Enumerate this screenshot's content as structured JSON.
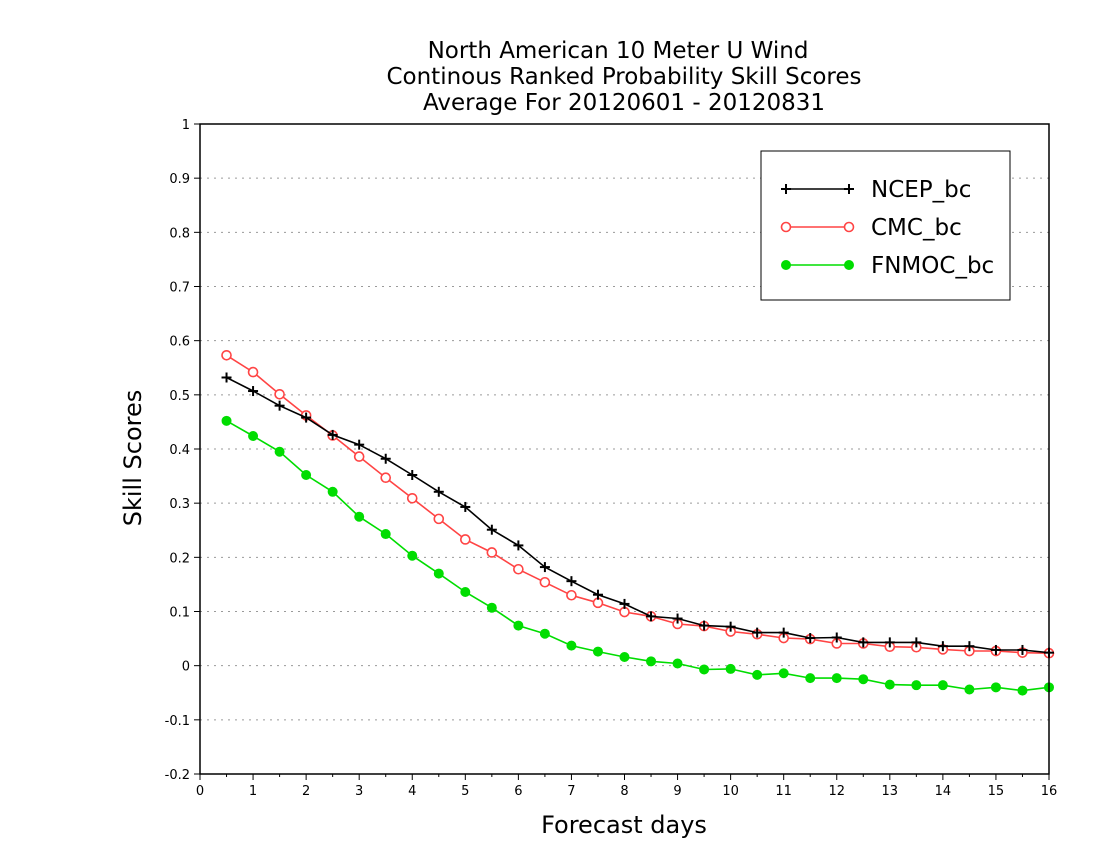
{
  "chart_data": {
    "type": "line",
    "title_lines": [
      "North American 10 Meter U Wind",
      "Continous Ranked Probability Skill Scores",
      "Average For 20120601 - 20120831"
    ],
    "xlabel": "Forecast days",
    "ylabel": "Skill Scores",
    "xlim": [
      0,
      16
    ],
    "ylim": [
      -0.2,
      1
    ],
    "x_ticks": [
      0,
      1,
      2,
      3,
      4,
      5,
      6,
      7,
      8,
      9,
      10,
      11,
      12,
      13,
      14,
      15,
      16
    ],
    "y_ticks": [
      -0.2,
      -0.1,
      0,
      0.1,
      0.2,
      0.3,
      0.4,
      0.5,
      0.6,
      0.7,
      0.8,
      0.9,
      1
    ],
    "y_tick_labels": [
      "-0.2",
      "-0.1",
      "0",
      "0.1",
      "0.2",
      "0.3",
      "0.4",
      "0.5",
      "0.6",
      "0.7",
      "0.8",
      "0.9",
      "1"
    ],
    "grid": "horizontal dotted",
    "legend_position": "top-right",
    "x": [
      0.5,
      1,
      1.5,
      2,
      2.5,
      3,
      3.5,
      4,
      4.5,
      5,
      5.5,
      6,
      6.5,
      7,
      7.5,
      8,
      8.5,
      9,
      9.5,
      10,
      10.5,
      11,
      11.5,
      12,
      12.5,
      13,
      13.5,
      14,
      14.5,
      15,
      15.5,
      16
    ],
    "series": [
      {
        "name": "NCEP_bc",
        "color": "#000000",
        "marker": "plus",
        "values": [
          0.532,
          0.507,
          0.48,
          0.458,
          0.426,
          0.408,
          0.382,
          0.352,
          0.321,
          0.293,
          0.251,
          0.222,
          0.182,
          0.156,
          0.131,
          0.114,
          0.091,
          0.087,
          0.074,
          0.072,
          0.061,
          0.061,
          0.051,
          0.052,
          0.043,
          0.043,
          0.043,
          0.036,
          0.036,
          0.029,
          0.029,
          0.024
        ]
      },
      {
        "name": "CMC_bc",
        "color": "#ff4444",
        "marker": "open-circle",
        "values": [
          0.573,
          0.542,
          0.501,
          0.462,
          0.425,
          0.386,
          0.347,
          0.309,
          0.271,
          0.233,
          0.209,
          0.178,
          0.154,
          0.13,
          0.116,
          0.099,
          0.091,
          0.077,
          0.073,
          0.063,
          0.058,
          0.051,
          0.049,
          0.041,
          0.041,
          0.035,
          0.034,
          0.03,
          0.027,
          0.027,
          0.024,
          0.023
        ]
      },
      {
        "name": "FNMOC_bc",
        "color": "#00dd00",
        "marker": "filled-circle",
        "values": [
          0.452,
          0.424,
          0.395,
          0.352,
          0.321,
          0.275,
          0.243,
          0.203,
          0.17,
          0.136,
          0.107,
          0.074,
          0.059,
          0.037,
          0.026,
          0.016,
          0.008,
          0.004,
          -0.007,
          -0.006,
          -0.017,
          -0.014,
          -0.023,
          -0.023,
          -0.025,
          -0.035,
          -0.036,
          -0.036,
          -0.044,
          -0.04,
          -0.046,
          -0.04
        ]
      }
    ]
  }
}
